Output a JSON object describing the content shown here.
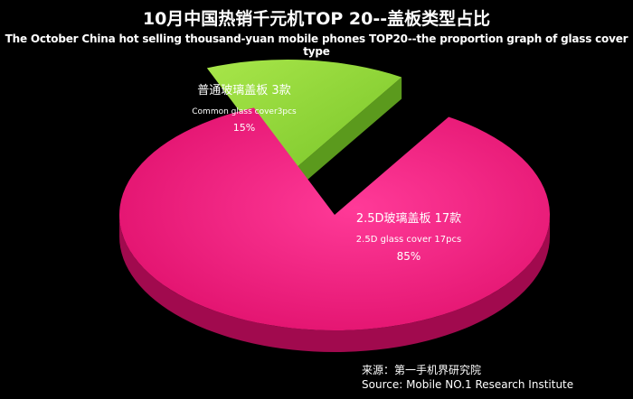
{
  "chart_data": {
    "type": "pie",
    "title": "10月中国热销千元机TOP 20--盖板类型占比",
    "subtitle": "The October China hot selling thousand-yuan mobile phones TOP20--the proportion graph of glass cover type",
    "slices": [
      {
        "label_cn": "普通玻璃盖板 3款",
        "label_en": "Common glass cover3pcs",
        "count": 3,
        "percent_label": "15%",
        "value": 15,
        "color": "#8fd43a"
      },
      {
        "label_cn": "2.5D玻璃盖板 17款",
        "label_en": "2.5D glass cover 17pcs",
        "count": 17,
        "percent_label": "85%",
        "value": 85,
        "color": "#ef1f7c"
      }
    ]
  },
  "source": {
    "line1": "来源：第一手机界研究院",
    "line2": "Source: Mobile NO.1 Research Institute"
  }
}
